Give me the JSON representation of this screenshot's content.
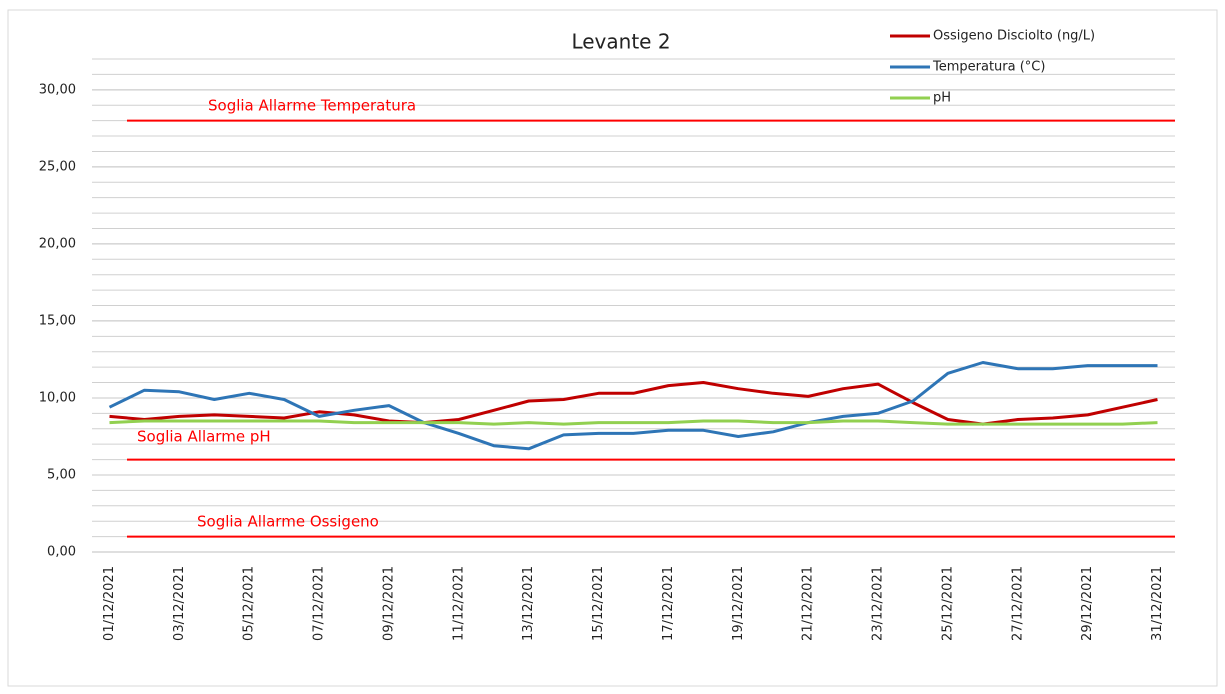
{
  "chart_data": {
    "type": "line",
    "title": "Levante 2",
    "categories": [
      "01/12/2021",
      null,
      "03/12/2021",
      null,
      "05/12/2021",
      null,
      "07/12/2021",
      null,
      "09/12/2021",
      null,
      "11/12/2021",
      null,
      "13/12/2021",
      null,
      "15/12/2021",
      null,
      "17/12/2021",
      null,
      "19/12/2021",
      null,
      "21/12/2021",
      null,
      "23/12/2021",
      null,
      "25/12/2021",
      null,
      "27/12/2021",
      null,
      "29/12/2021",
      null,
      "31/12/2021"
    ],
    "series": [
      {
        "name": "Ossigeno  Disciolto (ng/L)",
        "color": "#c00000",
        "values": [
          8.8,
          8.6,
          8.8,
          8.9,
          8.8,
          8.7,
          9.1,
          8.9,
          8.5,
          8.4,
          8.6,
          9.2,
          9.8,
          9.9,
          10.3,
          10.3,
          10.8,
          11.0,
          10.6,
          10.3,
          10.1,
          10.6,
          10.9,
          9.7,
          8.6,
          8.3,
          8.6,
          8.7,
          8.9,
          9.4,
          9.9
        ]
      },
      {
        "name": "Temperatura (°C)",
        "color": "#2e75b6",
        "values": [
          9.4,
          10.5,
          10.4,
          9.9,
          10.3,
          9.9,
          8.8,
          9.2,
          9.5,
          8.4,
          7.7,
          6.9,
          6.7,
          7.6,
          7.7,
          7.7,
          7.9,
          7.9,
          7.5,
          7.8,
          8.4,
          8.8,
          9.0,
          9.8,
          11.6,
          12.3,
          11.9,
          11.9,
          12.1,
          12.1,
          12.1
        ]
      },
      {
        "name": "pH",
        "color": "#92d050",
        "values": [
          8.4,
          8.5,
          8.5,
          8.5,
          8.5,
          8.5,
          8.5,
          8.4,
          8.4,
          8.4,
          8.4,
          8.3,
          8.4,
          8.3,
          8.4,
          8.4,
          8.4,
          8.5,
          8.5,
          8.4,
          8.4,
          8.5,
          8.5,
          8.4,
          8.3,
          8.3,
          8.3,
          8.3,
          8.3,
          8.3,
          8.4
        ]
      }
    ],
    "thresholds": [
      {
        "label": "Soglia Allarme Temperatura",
        "value": 28,
        "color": "#ff0000"
      },
      {
        "label": "Soglia  Allarme pH",
        "value": 6,
        "color": "#ff0000"
      },
      {
        "label": "Soglia  Allarme Ossigeno",
        "value": 1,
        "color": "#ff0000"
      }
    ],
    "ylim": [
      0,
      32
    ],
    "yticks": [
      {
        "value": 0,
        "label": "0,00"
      },
      {
        "value": 5,
        "label": "5,00"
      },
      {
        "value": 10,
        "label": "10,00"
      },
      {
        "value": 15,
        "label": "15,00"
      },
      {
        "value": 20,
        "label": "20,00"
      },
      {
        "value": 25,
        "label": "25,00"
      },
      {
        "value": 30,
        "label": "30,00"
      }
    ],
    "grid": true,
    "grid_step": 1,
    "legend": "top-right"
  }
}
